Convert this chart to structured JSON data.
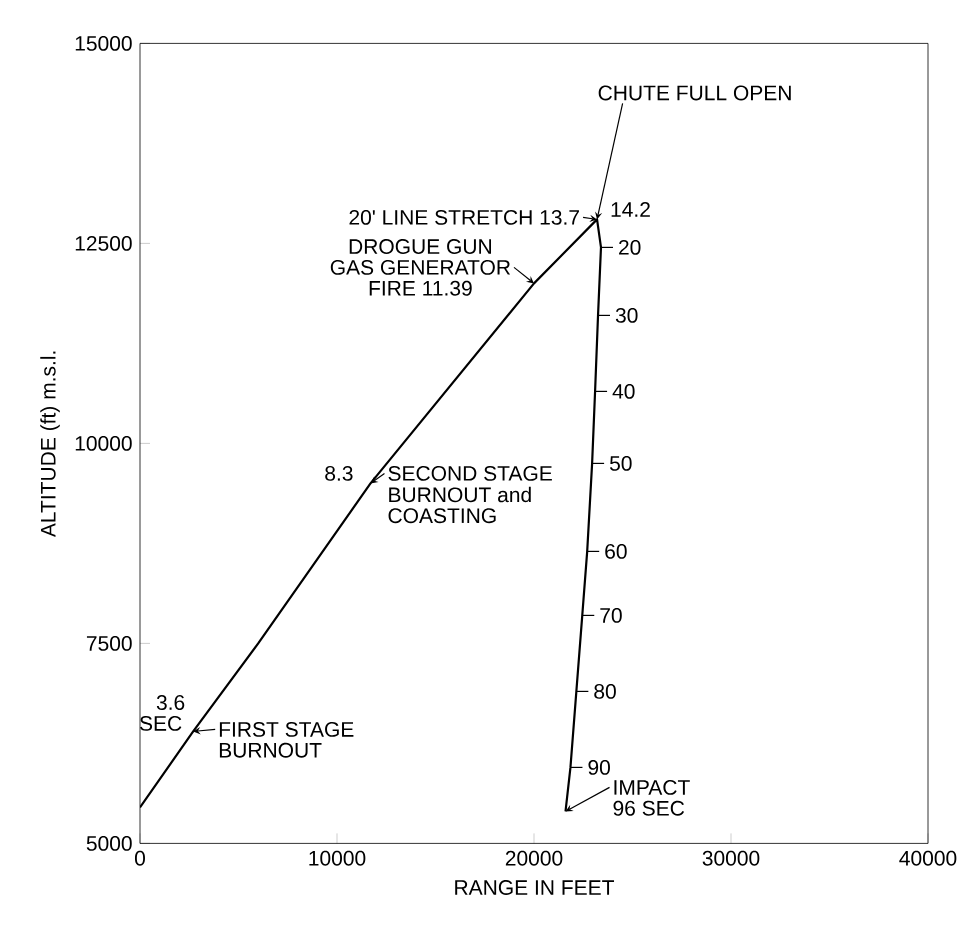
{
  "chart_data": {
    "type": "line",
    "xlabel": "RANGE IN FEET",
    "ylabel": "ALTITUDE (ft) m.s.l.",
    "x": [
      0,
      2700,
      6000,
      11700,
      20000,
      23200,
      23400,
      23250,
      23100,
      22950,
      22700,
      22450,
      22150,
      21850,
      21600
    ],
    "series": [
      {
        "color": "#000000",
        "values": [
          5450,
          6400,
          7500,
          9500,
          12000,
          12800,
          12450,
          11600,
          10650,
          9750,
          8650,
          7850,
          6900,
          5950,
          5400
        ]
      }
    ],
    "xlim": [
      0,
      40000
    ],
    "xticks": [
      0,
      10000,
      20000,
      30000,
      40000
    ],
    "ylim": [
      5000,
      15000
    ],
    "yticks": [
      5000,
      7500,
      10000,
      12500,
      15000
    ],
    "grid": false,
    "marker": "none",
    "line_style": "solid",
    "annotations": [
      {
        "text": "CHUTE FULL OPEN",
        "x": 23200,
        "y": 12800
      },
      {
        "text": "20' LINE STRETCH 13.7",
        "x": 23200,
        "y": 12800
      },
      {
        "text": "14.2",
        "x": 23200,
        "y": 12800
      },
      "DROGUE GUN",
      {
        "text": "GAS GENERATOR",
        "x": 20000,
        "y": 12000
      },
      "FIRE 11.39",
      {
        "text": "8.3",
        "x": 11700,
        "y": 9500
      },
      {
        "text": "SECOND STAGE",
        "x": 11700,
        "y": 9500
      },
      "BURNOUT and",
      "COASTING",
      "3.6",
      {
        "text": "SEC",
        "x": 2700,
        "y": 6400
      },
      {
        "text": "FIRST STAGE",
        "x": 2700,
        "y": 6400
      },
      "BURNOUT",
      {
        "text": "IMPACT",
        "x": 21600,
        "y": 5400
      },
      "96 SEC",
      {
        "text": "20",
        "x": 23400,
        "y": 12450
      },
      {
        "text": "30",
        "x": 23250,
        "y": 11600
      },
      {
        "text": "40",
        "x": 23100,
        "y": 10650
      },
      {
        "text": "50",
        "x": 22950,
        "y": 9750
      },
      {
        "text": "60",
        "x": 22700,
        "y": 8650
      },
      {
        "text": "70",
        "x": 22450,
        "y": 7850
      },
      {
        "text": "80",
        "x": 22150,
        "y": 6900
      },
      {
        "text": "90",
        "x": 21850,
        "y": 5950
      }
    ]
  }
}
